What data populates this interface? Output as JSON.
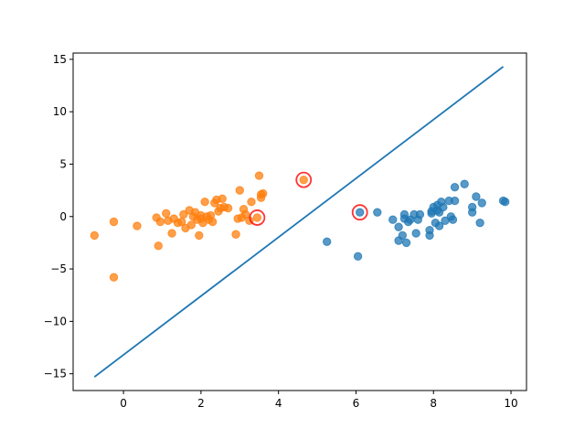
{
  "chart_data": {
    "type": "scatter",
    "title": "",
    "xlabel": "",
    "ylabel": "",
    "xlim": [
      -1.3,
      10.4
    ],
    "ylim": [
      -16.6,
      15.6
    ],
    "x_ticks": [
      0,
      2,
      4,
      6,
      8,
      10
    ],
    "y_ticks": [
      -15,
      -10,
      -5,
      0,
      5,
      10,
      15
    ],
    "x_tick_labels": [
      "0",
      "2",
      "4",
      "6",
      "8",
      "10"
    ],
    "y_tick_labels": [
      "−15",
      "−10",
      "−5",
      "0",
      "5",
      "10",
      "15"
    ],
    "grid": false,
    "legend": "none",
    "colors": {
      "class_a": "#ff7f0e",
      "class_b": "#1f77b4",
      "support_ring": "#ff0000",
      "boundary": "#1f77b4"
    },
    "series": [
      {
        "kind": "scatter",
        "color_key": "class_a",
        "x": [
          -0.75,
          -0.25,
          -0.25,
          0.35,
          0.85,
          0.9,
          0.95,
          1.1,
          1.15,
          1.25,
          1.3,
          1.4,
          1.5,
          1.55,
          1.6,
          1.7,
          1.75,
          1.8,
          1.85,
          1.9,
          1.95,
          2.0,
          2.0,
          2.05,
          2.1,
          2.15,
          2.2,
          2.25,
          2.3,
          2.35,
          2.4,
          2.45,
          2.5,
          2.55,
          2.6,
          2.7,
          2.9,
          2.95,
          3.0,
          3.05,
          3.1,
          3.15,
          3.25,
          3.3,
          3.45,
          3.5,
          3.55,
          3.6,
          3.55,
          4.65
        ],
        "y": [
          -1.8,
          -0.5,
          -5.8,
          -0.9,
          -0.1,
          -2.8,
          -0.5,
          0.3,
          -0.4,
          -1.6,
          -0.2,
          -0.6,
          -0.5,
          0.2,
          -1.1,
          0.6,
          -0.8,
          0.0,
          0.4,
          -0.3,
          -1.8,
          0.1,
          -0.2,
          -0.6,
          1.4,
          0.0,
          -0.3,
          0.1,
          -0.5,
          1.3,
          1.6,
          0.5,
          0.8,
          1.7,
          0.9,
          0.8,
          -1.7,
          -0.2,
          2.5,
          -0.1,
          0.7,
          0.2,
          -0.4,
          1.4,
          -0.1,
          3.9,
          2.1,
          2.2,
          1.8,
          3.5
        ]
      },
      {
        "kind": "scatter",
        "color_key": "class_b",
        "x": [
          5.25,
          6.05,
          6.1,
          6.55,
          6.95,
          7.1,
          7.1,
          7.2,
          7.25,
          7.25,
          7.3,
          7.35,
          7.4,
          7.5,
          7.55,
          7.6,
          7.65,
          7.9,
          7.9,
          7.95,
          7.95,
          8.0,
          8.05,
          8.1,
          8.1,
          8.15,
          8.15,
          8.2,
          8.25,
          8.3,
          8.4,
          8.45,
          8.5,
          8.55,
          8.55,
          8.8,
          9.0,
          9.0,
          9.1,
          9.2,
          9.25,
          9.8,
          9.85
        ],
        "y": [
          -2.4,
          -3.8,
          0.4,
          0.4,
          -0.3,
          -1.0,
          -2.3,
          -1.8,
          0.2,
          -0.2,
          -2.5,
          -0.5,
          -0.3,
          0.2,
          -1.6,
          -0.3,
          0.2,
          -1.3,
          -1.8,
          0.3,
          0.5,
          0.9,
          -0.6,
          0.6,
          1.1,
          -0.9,
          0.4,
          1.4,
          0.9,
          -0.4,
          1.5,
          0.0,
          -0.3,
          1.5,
          2.8,
          3.1,
          0.9,
          0.4,
          1.9,
          -0.6,
          1.3,
          1.5,
          1.4
        ]
      },
      {
        "kind": "line",
        "color_key": "boundary",
        "x": [
          -0.75,
          9.8
        ],
        "y": [
          -15.3,
          14.3
        ]
      }
    ],
    "support_vectors": {
      "color_key": "support_ring",
      "x": [
        3.45,
        4.65,
        6.1
      ],
      "y": [
        -0.1,
        3.5,
        0.4
      ]
    }
  }
}
